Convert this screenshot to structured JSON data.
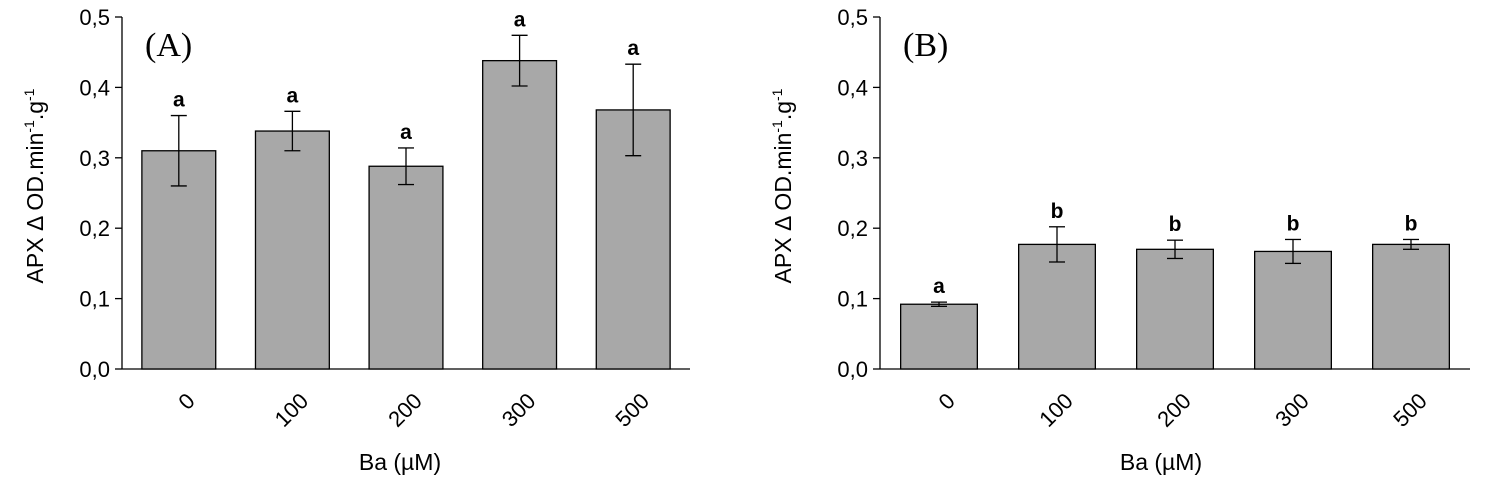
{
  "figure": {
    "bar_color": "#a8a8a8",
    "bar_edge_color": "#000000",
    "axis_color": "#000000"
  },
  "chart_data": [
    {
      "type": "bar",
      "panel_label": "(A)",
      "categories": [
        "0",
        "100",
        "200",
        "300",
        "500"
      ],
      "values": [
        0.31,
        0.338,
        0.288,
        0.438,
        0.368
      ],
      "errors": [
        0.05,
        0.028,
        0.026,
        0.036,
        0.065
      ],
      "significance": [
        "a",
        "a",
        "a",
        "a",
        "a"
      ],
      "xlabel": "Ba (µM)",
      "ylabel": {
        "prefix": "APX Δ OD.min",
        "sup1": "-1",
        "middle": ".g",
        "sup2": "-1"
      },
      "ylim": [
        0,
        0.5
      ],
      "yticks": [
        0,
        0.1,
        0.2,
        0.3,
        0.4,
        0.5
      ],
      "ytick_labels": [
        "0,0",
        "0,1",
        "0,2",
        "0,3",
        "0,4",
        "0,5"
      ],
      "grid": false
    },
    {
      "type": "bar",
      "panel_label": "(B)",
      "categories": [
        "0",
        "100",
        "200",
        "300",
        "500"
      ],
      "values": [
        0.092,
        0.177,
        0.17,
        0.167,
        0.177
      ],
      "errors": [
        0.003,
        0.025,
        0.013,
        0.017,
        0.007
      ],
      "significance": [
        "a",
        "b",
        "b",
        "b",
        "b"
      ],
      "xlabel": "Ba (µM)",
      "ylabel": {
        "prefix": "APX Δ OD.min",
        "sup1": "-1",
        "middle": ".g",
        "sup2": "-1"
      },
      "ylim": [
        0,
        0.5
      ],
      "yticks": [
        0,
        0.1,
        0.2,
        0.3,
        0.4,
        0.5
      ],
      "ytick_labels": [
        "0,0",
        "0,1",
        "0,2",
        "0,3",
        "0,4",
        "0,5"
      ],
      "grid": false
    }
  ]
}
